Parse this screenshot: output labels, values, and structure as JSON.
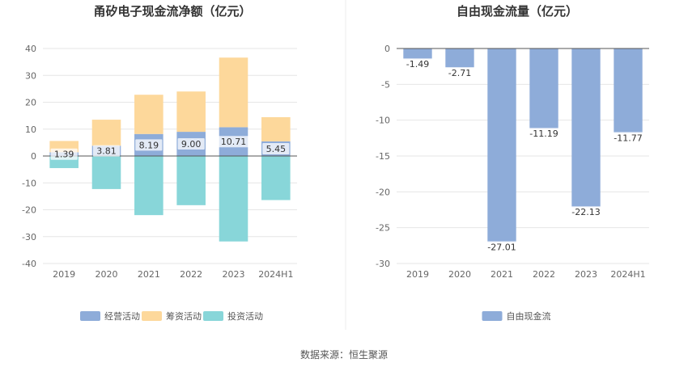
{
  "source_note": "数据来源：恒生聚源",
  "chart_data": [
    {
      "type": "bar",
      "stacked": true,
      "title": "甬矽电子现金流净额（亿元）",
      "categories": [
        "2019",
        "2020",
        "2021",
        "2022",
        "2023",
        "2024H1"
      ],
      "ylim": [
        -40,
        40
      ],
      "yticks": [
        40,
        30,
        20,
        10,
        0,
        -10,
        -20,
        -30,
        -40
      ],
      "grid": true,
      "legend_position": "bottom",
      "series": [
        {
          "name": "经营活动",
          "color": "#8eacd9",
          "values": [
            1.39,
            3.81,
            8.19,
            9.0,
            10.71,
            5.45
          ],
          "labels": [
            "1.39",
            "3.81",
            "8.19",
            "9.00",
            "10.71",
            "5.45"
          ]
        },
        {
          "name": "筹资活动",
          "color": "#fdd89b",
          "values": [
            4.2,
            9.7,
            14.6,
            15.0,
            25.9,
            9.0
          ]
        },
        {
          "name": "投资活动",
          "color": "#88d6d9",
          "values": [
            -4.5,
            -12.3,
            -22.0,
            -18.3,
            -31.8,
            -16.4
          ]
        }
      ]
    },
    {
      "type": "bar",
      "title": "自由现金流量（亿元）",
      "categories": [
        "2019",
        "2020",
        "2021",
        "2022",
        "2023",
        "2024H1"
      ],
      "ylim": [
        -30,
        0
      ],
      "yticks": [
        0,
        -5,
        -10,
        -15,
        -20,
        -25,
        -30
      ],
      "grid": true,
      "legend_position": "bottom",
      "series": [
        {
          "name": "自由现金流",
          "color": "#8eacd9",
          "values": [
            -1.49,
            -2.71,
            -27.01,
            -11.19,
            -22.13,
            -11.77
          ],
          "labels": [
            "-1.49",
            "-2.71",
            "-27.01",
            "-11.19",
            "-22.13",
            "-11.77"
          ]
        }
      ]
    }
  ]
}
